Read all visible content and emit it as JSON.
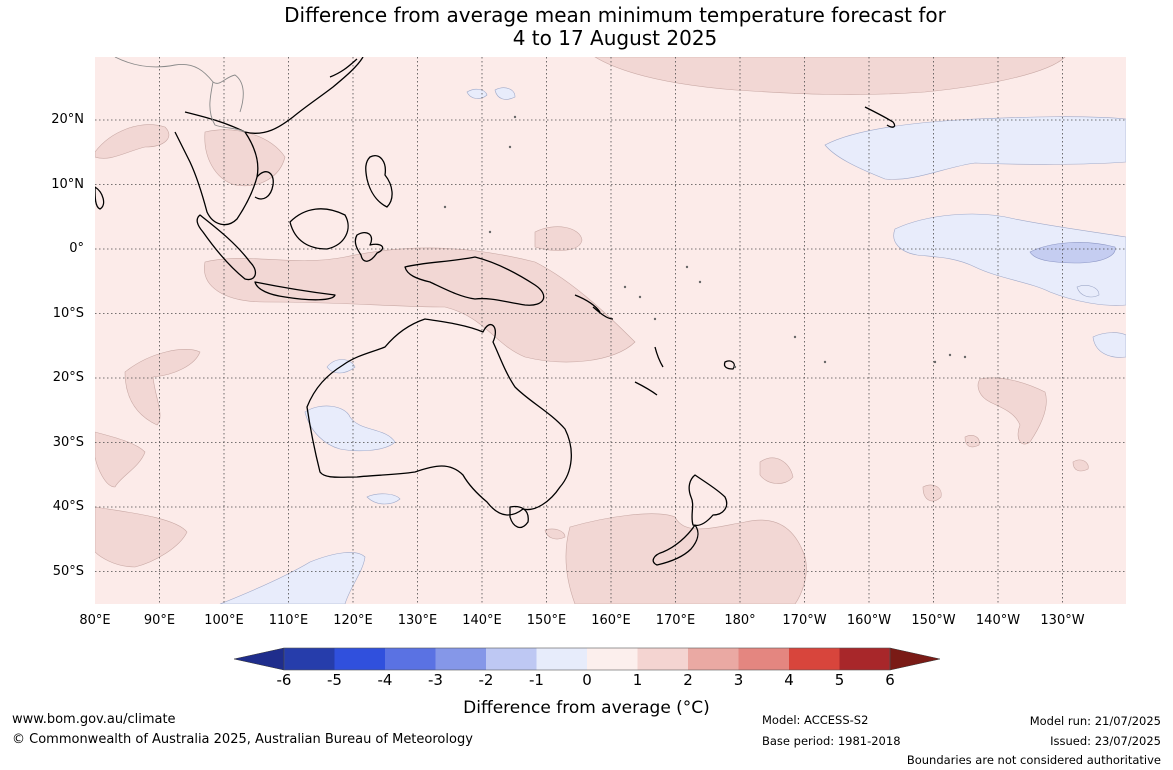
{
  "title": {
    "line1": "Difference from average mean minimum temperature forecast for",
    "line2": "4 to 17 August 2025"
  },
  "map": {
    "lat_labels": [
      "20°N",
      "10°N",
      "0°",
      "10°S",
      "20°S",
      "30°S",
      "40°S",
      "50°S"
    ],
    "lon_labels": [
      "80°E",
      "90°E",
      "100°E",
      "110°E",
      "120°E",
      "130°E",
      "140°E",
      "150°E",
      "160°E",
      "170°E",
      "180°",
      "170°W",
      "160°W",
      "150°W",
      "140°W",
      "130°W"
    ],
    "colors": {
      "anom_0_1": "#fcebe9",
      "anom_1_2": "#f2d7d4",
      "anom_m1_0": "#e8ecfb",
      "anom_m2_m1": "#c5cdf1",
      "land_outline": "#000000"
    }
  },
  "colorbar": {
    "ticks": [
      "-6",
      "-5",
      "-4",
      "-3",
      "-2",
      "-1",
      "0",
      "1",
      "2",
      "3",
      "4",
      "5",
      "6"
    ],
    "colors": [
      "#1f2d8c",
      "#263dab",
      "#3050dd",
      "#5a72e3",
      "#8597e8",
      "#bec8f3",
      "#e7ecfb",
      "#fcefed",
      "#f4d4d1",
      "#eaa9a3",
      "#e48680",
      "#d8453c",
      "#a8272a",
      "#7a1b16"
    ],
    "title": "Difference from average (°C)"
  },
  "footer": {
    "url": "www.bom.gov.au/climate",
    "copyright": "© Commonwealth of Australia 2025, Australian Bureau of Meteorology",
    "model": "Model: ACCESS-S2",
    "base_period": "Base period: 1981-2018",
    "model_run": "Model run: 21/07/2025",
    "issued": "Issued: 23/07/2025",
    "disclaimer": "Boundaries are not considered authoritative"
  }
}
